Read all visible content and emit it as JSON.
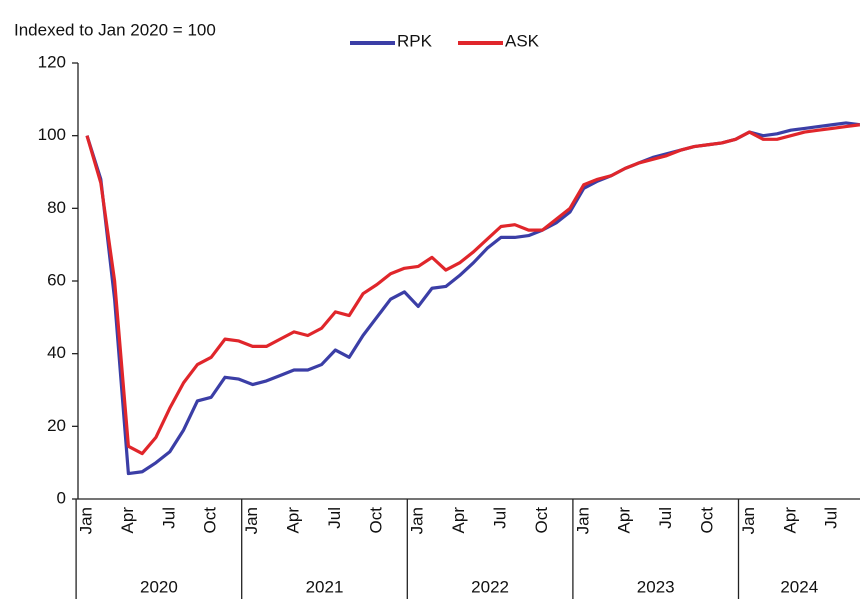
{
  "chart_data": {
    "type": "line",
    "subtitle": "Indexed to Jan 2020 = 100",
    "categories": [
      "Jan",
      null,
      null,
      "Apr",
      null,
      null,
      "Jul",
      null,
      null,
      "Oct",
      null,
      null,
      "Jan",
      null,
      null,
      "Apr",
      null,
      null,
      "Jul",
      null,
      null,
      "Oct",
      null,
      null,
      "Jan",
      null,
      null,
      "Apr",
      null,
      null,
      "Jul",
      null,
      null,
      "Oct",
      null,
      null,
      "Jan",
      null,
      null,
      "Apr",
      null,
      null,
      "Jul",
      null,
      null,
      "Oct",
      null,
      null,
      "Jan",
      null,
      null,
      "Apr",
      null,
      null,
      "Jul",
      null,
      null
    ],
    "years": [
      "2020",
      "2021",
      "2022",
      "2023",
      "2024"
    ],
    "series": [
      {
        "name": "RPK",
        "color": "#3b3ea6",
        "values": [
          100,
          88,
          55,
          7,
          7.5,
          10,
          13,
          19,
          27,
          28,
          33.5,
          33,
          31.5,
          32.5,
          34,
          35.5,
          35.5,
          37,
          41,
          39,
          45,
          50,
          55,
          57,
          53,
          58,
          58.5,
          61.5,
          65,
          69,
          72,
          72,
          72.5,
          74,
          76,
          79,
          85.5,
          87.5,
          89,
          91,
          92.5,
          94,
          95,
          96,
          97,
          97.5,
          98,
          99,
          101,
          100,
          100.5,
          101.5,
          102,
          102.5,
          103,
          103.5,
          103
        ]
      },
      {
        "name": "ASK",
        "color": "#e0262b",
        "values": [
          100,
          87,
          60,
          14.5,
          12.5,
          17,
          25,
          32,
          37,
          39,
          44,
          43.5,
          42,
          42,
          44,
          46,
          45,
          47,
          51.5,
          50.5,
          56.5,
          59,
          62,
          63.5,
          64,
          66.5,
          63,
          65,
          68,
          71.5,
          75,
          75.5,
          74,
          74,
          77,
          80,
          86.5,
          88,
          89,
          91,
          92.5,
          93.5,
          94.5,
          96,
          97,
          97.5,
          98,
          99,
          101,
          99,
          99,
          100,
          101,
          101.5,
          102,
          102.5,
          103
        ]
      }
    ],
    "ylim": [
      0,
      120
    ],
    "yticks": [
      0,
      20,
      40,
      60,
      80,
      100,
      120
    ],
    "grid": false
  }
}
